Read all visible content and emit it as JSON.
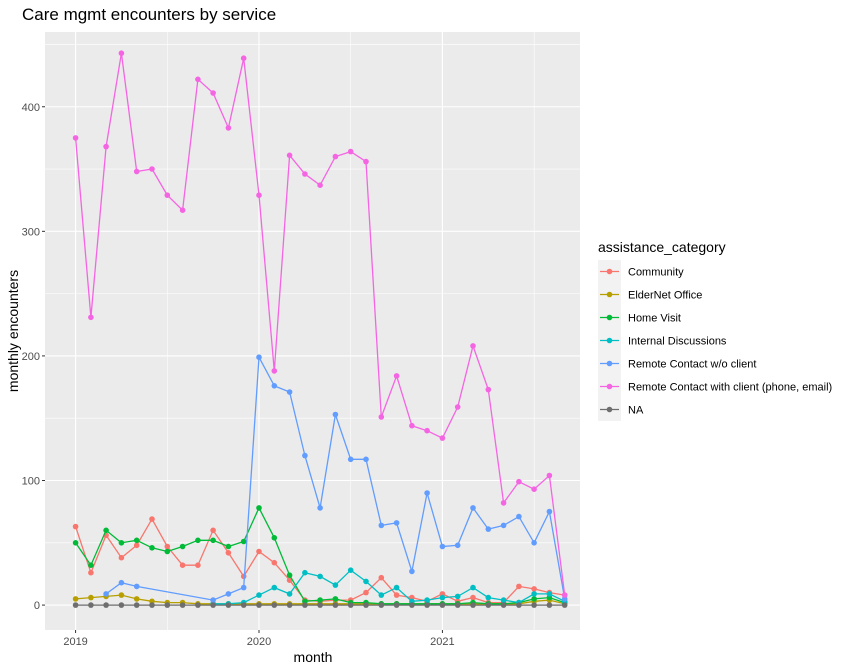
{
  "chart_data": {
    "type": "line",
    "title": "Care mgmt encounters by service",
    "xlabel": "month",
    "ylabel": "monthly encounters",
    "x_tick_labels": [
      "2019",
      "2020",
      "2021"
    ],
    "y_tick_labels": [
      "0",
      "100",
      "200",
      "300",
      "400"
    ],
    "xlim": [
      "2018-11",
      "2021-10"
    ],
    "ylim": [
      -20,
      460
    ],
    "grid": true,
    "theme": "grey panel",
    "legend": {
      "title": "assistance_category",
      "position": "right"
    },
    "series": [
      {
        "name": "Community",
        "color": "#F8766D",
        "points": [
          [
            "2019-01",
            63
          ],
          [
            "2019-02",
            26
          ],
          [
            "2019-03",
            56
          ],
          [
            "2019-04",
            38
          ],
          [
            "2019-05",
            48
          ],
          [
            "2019-06",
            69
          ],
          [
            "2019-07",
            47
          ],
          [
            "2019-08",
            32
          ],
          [
            "2019-09",
            32
          ],
          [
            "2019-10",
            60
          ],
          [
            "2019-11",
            42
          ],
          [
            "2019-12",
            23
          ],
          [
            "2020-01",
            43
          ],
          [
            "2020-02",
            34
          ],
          [
            "2020-03",
            20
          ],
          [
            "2020-04",
            4
          ],
          [
            "2020-05",
            3
          ],
          [
            "2020-06",
            4
          ],
          [
            "2020-07",
            4
          ],
          [
            "2020-08",
            10
          ],
          [
            "2020-09",
            22
          ],
          [
            "2020-10",
            8
          ],
          [
            "2020-11",
            6
          ],
          [
            "2020-12",
            3
          ],
          [
            "2021-01",
            9
          ],
          [
            "2021-02",
            3
          ],
          [
            "2021-03",
            6
          ],
          [
            "2021-04",
            2
          ],
          [
            "2021-05",
            2
          ],
          [
            "2021-06",
            15
          ],
          [
            "2021-07",
            13
          ],
          [
            "2021-08",
            10
          ],
          [
            "2021-09",
            8
          ]
        ]
      },
      {
        "name": "ElderNet Office",
        "color": "#B79F00",
        "points": [
          [
            "2019-01",
            5
          ],
          [
            "2019-02",
            6
          ],
          [
            "2019-03",
            7
          ],
          [
            "2019-04",
            8
          ],
          [
            "2019-05",
            5
          ],
          [
            "2019-06",
            3
          ],
          [
            "2019-07",
            2
          ],
          [
            "2019-08",
            2
          ],
          [
            "2019-09",
            1
          ],
          [
            "2019-10",
            1
          ],
          [
            "2019-11",
            1
          ],
          [
            "2019-12",
            1
          ],
          [
            "2020-01",
            1
          ],
          [
            "2020-02",
            1
          ],
          [
            "2020-03",
            1
          ],
          [
            "2020-04",
            1
          ],
          [
            "2020-05",
            1
          ],
          [
            "2020-06",
            1
          ],
          [
            "2020-07",
            1
          ],
          [
            "2020-08",
            1
          ],
          [
            "2020-09",
            1
          ],
          [
            "2020-10",
            1
          ],
          [
            "2020-11",
            1
          ],
          [
            "2020-12",
            1
          ],
          [
            "2021-01",
            1
          ],
          [
            "2021-02",
            1
          ],
          [
            "2021-03",
            1
          ],
          [
            "2021-04",
            1
          ],
          [
            "2021-05",
            1
          ],
          [
            "2021-06",
            1
          ],
          [
            "2021-07",
            3
          ],
          [
            "2021-08",
            4
          ],
          [
            "2021-09",
            1
          ]
        ]
      },
      {
        "name": "Home Visit",
        "color": "#00BA38",
        "points": [
          [
            "2019-01",
            50
          ],
          [
            "2019-02",
            32
          ],
          [
            "2019-03",
            60
          ],
          [
            "2019-04",
            50
          ],
          [
            "2019-05",
            52
          ],
          [
            "2019-06",
            46
          ],
          [
            "2019-07",
            43
          ],
          [
            "2019-08",
            47
          ],
          [
            "2019-09",
            52
          ],
          [
            "2019-10",
            52
          ],
          [
            "2019-11",
            47
          ],
          [
            "2019-12",
            51
          ],
          [
            "2020-01",
            78
          ],
          [
            "2020-02",
            54
          ],
          [
            "2020-03",
            24
          ],
          [
            "2020-04",
            3
          ],
          [
            "2020-05",
            4
          ],
          [
            "2020-06",
            5
          ],
          [
            "2020-07",
            2
          ],
          [
            "2020-08",
            2
          ],
          [
            "2020-09",
            1
          ],
          [
            "2020-10",
            1
          ],
          [
            "2020-11",
            1
          ],
          [
            "2020-12",
            1
          ],
          [
            "2021-01",
            1
          ],
          [
            "2021-02",
            1
          ],
          [
            "2021-03",
            2
          ],
          [
            "2021-04",
            1
          ],
          [
            "2021-05",
            1
          ],
          [
            "2021-06",
            2
          ],
          [
            "2021-07",
            5
          ],
          [
            "2021-08",
            6
          ],
          [
            "2021-09",
            2
          ]
        ]
      },
      {
        "name": "Internal Discussions",
        "color": "#00BFC4",
        "points": [
          [
            "2019-10",
            1
          ],
          [
            "2019-11",
            1
          ],
          [
            "2019-12",
            2
          ],
          [
            "2020-01",
            8
          ],
          [
            "2020-02",
            14
          ],
          [
            "2020-03",
            9
          ],
          [
            "2020-04",
            26
          ],
          [
            "2020-05",
            23
          ],
          [
            "2020-06",
            16
          ],
          [
            "2020-07",
            28
          ],
          [
            "2020-08",
            19
          ],
          [
            "2020-09",
            8
          ],
          [
            "2020-10",
            14
          ],
          [
            "2020-11",
            3
          ],
          [
            "2020-12",
            4
          ],
          [
            "2021-01",
            6
          ],
          [
            "2021-02",
            7
          ],
          [
            "2021-03",
            14
          ],
          [
            "2021-04",
            6
          ],
          [
            "2021-05",
            4
          ],
          [
            "2021-06",
            2
          ],
          [
            "2021-07",
            9
          ],
          [
            "2021-08",
            9
          ],
          [
            "2021-09",
            3
          ]
        ]
      },
      {
        "name": "Remote Contact w/o client",
        "color": "#619CFF",
        "points": [
          [
            "2019-03",
            9
          ],
          [
            "2019-04",
            18
          ],
          [
            "2019-05",
            15
          ],
          [
            "2019-10",
            4
          ],
          [
            "2019-11",
            9
          ],
          [
            "2019-12",
            14
          ],
          [
            "2020-01",
            199
          ],
          [
            "2020-02",
            176
          ],
          [
            "2020-03",
            171
          ],
          [
            "2020-04",
            120
          ],
          [
            "2020-05",
            78
          ],
          [
            "2020-06",
            153
          ],
          [
            "2020-07",
            117
          ],
          [
            "2020-08",
            117
          ],
          [
            "2020-09",
            64
          ],
          [
            "2020-10",
            66
          ],
          [
            "2020-11",
            27
          ],
          [
            "2020-12",
            90
          ],
          [
            "2021-01",
            47
          ],
          [
            "2021-02",
            48
          ],
          [
            "2021-03",
            78
          ],
          [
            "2021-04",
            61
          ],
          [
            "2021-05",
            64
          ],
          [
            "2021-06",
            71
          ],
          [
            "2021-07",
            50
          ],
          [
            "2021-08",
            75
          ],
          [
            "2021-09",
            5
          ]
        ]
      },
      {
        "name": "Remote Contact with client (phone, email)",
        "color": "#F564E3",
        "points": [
          [
            "2019-01",
            375
          ],
          [
            "2019-02",
            231
          ],
          [
            "2019-03",
            368
          ],
          [
            "2019-04",
            443
          ],
          [
            "2019-05",
            348
          ],
          [
            "2019-06",
            350
          ],
          [
            "2019-07",
            329
          ],
          [
            "2019-08",
            317
          ],
          [
            "2019-09",
            422
          ],
          [
            "2019-10",
            411
          ],
          [
            "2019-11",
            383
          ],
          [
            "2019-12",
            439
          ],
          [
            "2020-01",
            329
          ],
          [
            "2020-02",
            188
          ],
          [
            "2020-03",
            361
          ],
          [
            "2020-04",
            346
          ],
          [
            "2020-05",
            337
          ],
          [
            "2020-06",
            360
          ],
          [
            "2020-07",
            364
          ],
          [
            "2020-08",
            356
          ],
          [
            "2020-09",
            151
          ],
          [
            "2020-10",
            184
          ],
          [
            "2020-11",
            144
          ],
          [
            "2020-12",
            140
          ],
          [
            "2021-01",
            134
          ],
          [
            "2021-02",
            159
          ],
          [
            "2021-03",
            208
          ],
          [
            "2021-04",
            173
          ],
          [
            "2021-05",
            82
          ],
          [
            "2021-06",
            99
          ],
          [
            "2021-07",
            93
          ],
          [
            "2021-08",
            104
          ],
          [
            "2021-09",
            8
          ]
        ]
      },
      {
        "name": "NA",
        "color": "#6E6E6E",
        "points": [
          [
            "2019-01",
            0
          ],
          [
            "2019-02",
            0
          ],
          [
            "2019-03",
            0
          ],
          [
            "2019-04",
            0
          ],
          [
            "2019-05",
            0
          ],
          [
            "2019-06",
            0
          ],
          [
            "2019-07",
            0
          ],
          [
            "2019-08",
            0
          ],
          [
            "2019-09",
            0
          ],
          [
            "2019-10",
            0
          ],
          [
            "2019-11",
            0
          ],
          [
            "2019-12",
            0
          ],
          [
            "2020-01",
            0
          ],
          [
            "2020-02",
            0
          ],
          [
            "2020-03",
            0
          ],
          [
            "2020-04",
            0
          ],
          [
            "2020-05",
            0
          ],
          [
            "2020-06",
            0
          ],
          [
            "2020-07",
            0
          ],
          [
            "2020-08",
            0
          ],
          [
            "2020-09",
            0
          ],
          [
            "2020-10",
            0
          ],
          [
            "2020-11",
            0
          ],
          [
            "2020-12",
            0
          ],
          [
            "2021-01",
            0
          ],
          [
            "2021-02",
            0
          ],
          [
            "2021-03",
            0
          ],
          [
            "2021-04",
            0
          ],
          [
            "2021-05",
            0
          ],
          [
            "2021-06",
            0
          ],
          [
            "2021-07",
            0
          ],
          [
            "2021-08",
            0
          ],
          [
            "2021-09",
            0
          ]
        ]
      }
    ]
  }
}
